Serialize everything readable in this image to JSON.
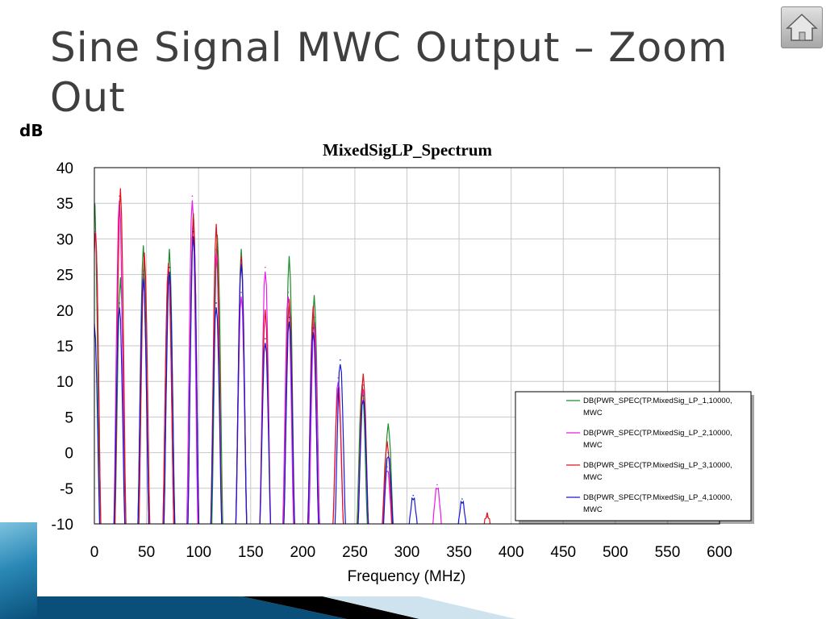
{
  "slide": {
    "title_line1": "Sine Signal MWC Output – Zoom",
    "title_line2": "Out",
    "y_unit_label": "dB"
  },
  "nav": {
    "home_icon": "home-icon"
  },
  "colors": {
    "series1": "#1b8c2a",
    "series2": "#e81ce8",
    "series3": "#e0141e",
    "series4": "#1818d8",
    "grid": "#c8c8c8",
    "title": "#3f3f3f"
  },
  "chart_data": {
    "type": "line",
    "title": "MixedSigLP_Spectrum",
    "xlabel": "Frequency (MHz)",
    "ylabel": "",
    "xlim": [
      0,
      600
    ],
    "ylim": [
      -10,
      40
    ],
    "xticks": [
      0,
      50,
      100,
      150,
      200,
      250,
      300,
      350,
      400,
      450,
      500,
      550,
      600
    ],
    "yticks": [
      40,
      35,
      30,
      25,
      20,
      15,
      10,
      5,
      0,
      -5,
      -10
    ],
    "grid": true,
    "legend_position": "bottom-right",
    "series": [
      {
        "name": "DB(PWR_SPEC(TP.MixedSig_LP_1,10000,",
        "name_line2": "MWC",
        "peaks": [
          [
            0,
            35
          ],
          [
            25,
            24
          ],
          [
            47,
            28.5
          ],
          [
            72,
            28
          ],
          [
            95,
            33
          ],
          [
            118,
            30
          ],
          [
            141,
            28
          ],
          [
            187,
            27
          ],
          [
            211,
            21.5
          ],
          [
            257,
            9
          ],
          [
            282,
            3.5
          ]
        ]
      },
      {
        "name": "DB(PWR_SPEC(TP.MixedSig_LP_2,10000,",
        "name_line2": "MWC",
        "peaks": [
          [
            1,
            31
          ],
          [
            24,
            36
          ],
          [
            47,
            25.5
          ],
          [
            71,
            26.5
          ],
          [
            94,
            36
          ],
          [
            117,
            28.5
          ],
          [
            141,
            22.5
          ],
          [
            164,
            26
          ],
          [
            186,
            22.5
          ],
          [
            211,
            19
          ],
          [
            234,
            10.5
          ],
          [
            258,
            9.5
          ],
          [
            281,
            -2
          ],
          [
            329,
            -4.5
          ]
        ]
      },
      {
        "name": "DB(PWR_SPEC(TP.MixedSig_LP_3,10000,",
        "name_line2": "MWC",
        "peaks": [
          [
            1,
            30.5
          ],
          [
            25,
            36.5
          ],
          [
            48,
            27.5
          ],
          [
            71,
            26
          ],
          [
            95,
            33
          ],
          [
            117,
            31.5
          ],
          [
            141,
            27
          ],
          [
            164,
            19.5
          ],
          [
            187,
            21
          ],
          [
            210,
            20
          ],
          [
            234,
            8.5
          ],
          [
            258,
            10.5
          ],
          [
            281,
            1
          ],
          [
            377,
            -9
          ]
        ]
      },
      {
        "name": "DB(PWR_SPEC(TP.MixedSig_LP_4,10000,",
        "name_line2": "MWC",
        "peaks": [
          [
            0,
            18
          ],
          [
            24,
            21
          ],
          [
            47,
            25
          ],
          [
            72,
            26
          ],
          [
            95,
            31
          ],
          [
            117,
            21
          ],
          [
            141,
            27
          ],
          [
            164,
            16
          ],
          [
            187,
            19
          ],
          [
            210,
            17.5
          ],
          [
            236,
            13
          ],
          [
            258,
            8
          ],
          [
            282,
            0
          ],
          [
            306,
            -6
          ],
          [
            353,
            -6.5
          ]
        ]
      }
    ]
  }
}
